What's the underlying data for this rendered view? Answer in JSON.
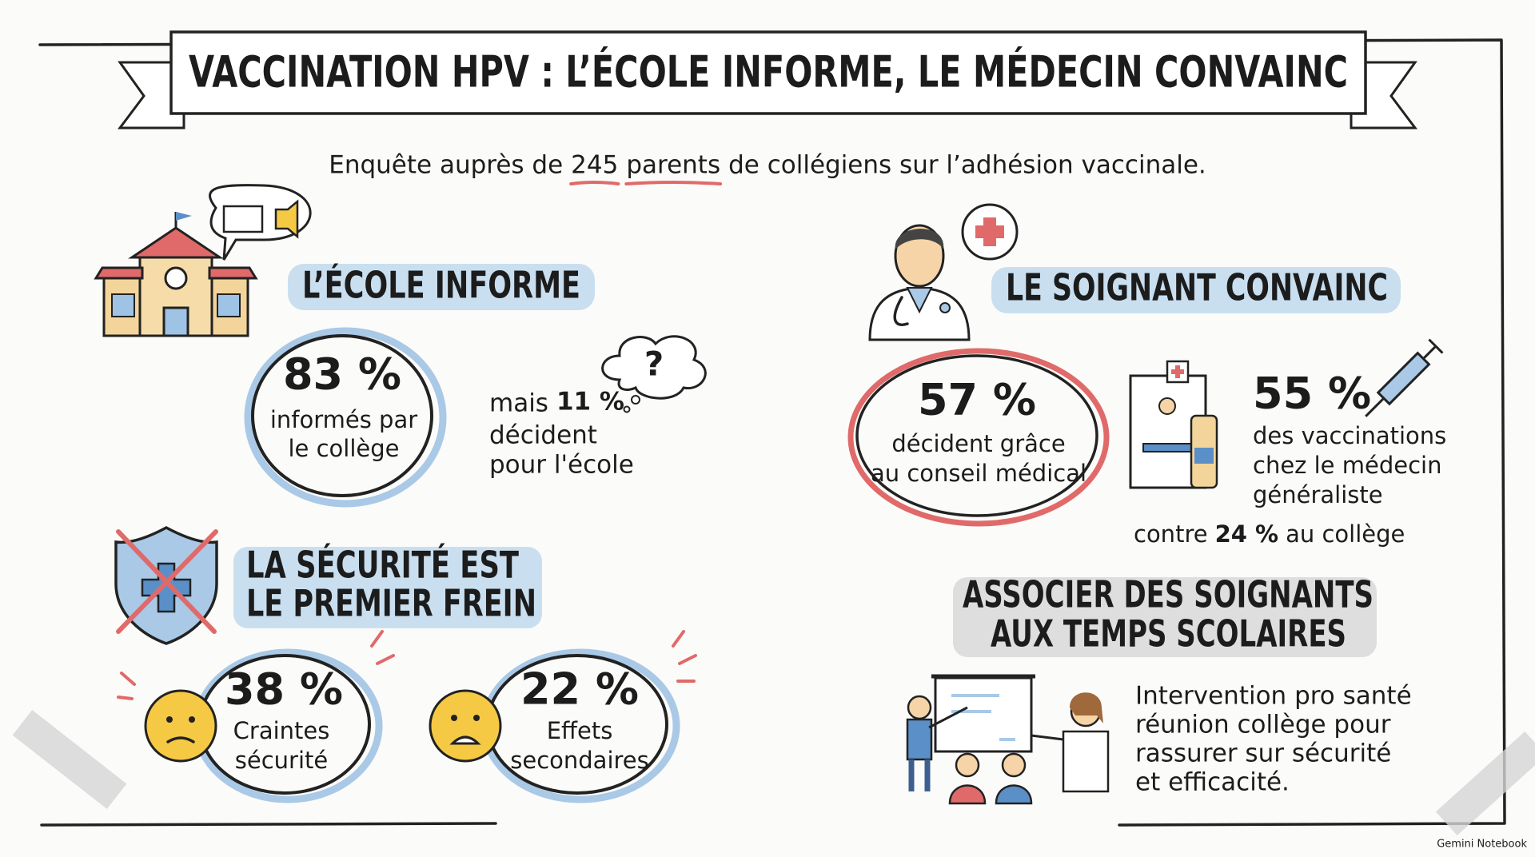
{
  "header": {
    "title": "VACCINATION HPV : L’ÉCOLE INFORME, LE MÉDECIN CONVAINC",
    "subtitle": {
      "before": "Enquête auprès de",
      "highlight_number": "245",
      "highlight_word": "parents",
      "after": "de collégiens sur l’adhésion vaccinale."
    }
  },
  "school": {
    "heading": "L’ÉCOLE INFORME",
    "stat": {
      "value": "83 %",
      "label_lines": [
        "informés par",
        "le collège"
      ]
    },
    "aside": {
      "prefix": "mais",
      "value": "11 %",
      "lines": [
        "décident",
        "pour l'école"
      ]
    }
  },
  "safety": {
    "heading_lines": [
      "LA SÉCURITÉ EST",
      "LE PREMIER FREIN"
    ],
    "stats": [
      {
        "value": "38 %",
        "label_lines": [
          "Craintes",
          "sécurité"
        ]
      },
      {
        "value": "22 %",
        "label_lines": [
          "Effets",
          "secondaires"
        ]
      }
    ]
  },
  "doctor": {
    "heading": "LE SOIGNANT CONVAINC",
    "stat": {
      "value": "57 %",
      "label_lines": [
        "décident grâce",
        "au conseil médical"
      ]
    },
    "gp": {
      "value": "55 %",
      "label_lines": [
        "des vaccinations",
        "chez le médecin",
        "généraliste"
      ]
    },
    "comparison": {
      "prefix": "contre",
      "value": "24 %",
      "suffix": "au collège"
    }
  },
  "recommendation": {
    "heading_lines": [
      "ASSOCIER DES SOIGNANTS",
      "AUX TEMPS SCOLAIRES"
    ],
    "text_lines": [
      "Intervention pro santé",
      "réunion collège pour",
      "rassurer sur sécurité",
      "et efficacité."
    ]
  },
  "footer": {
    "brand": "Gemini Notebook"
  }
}
